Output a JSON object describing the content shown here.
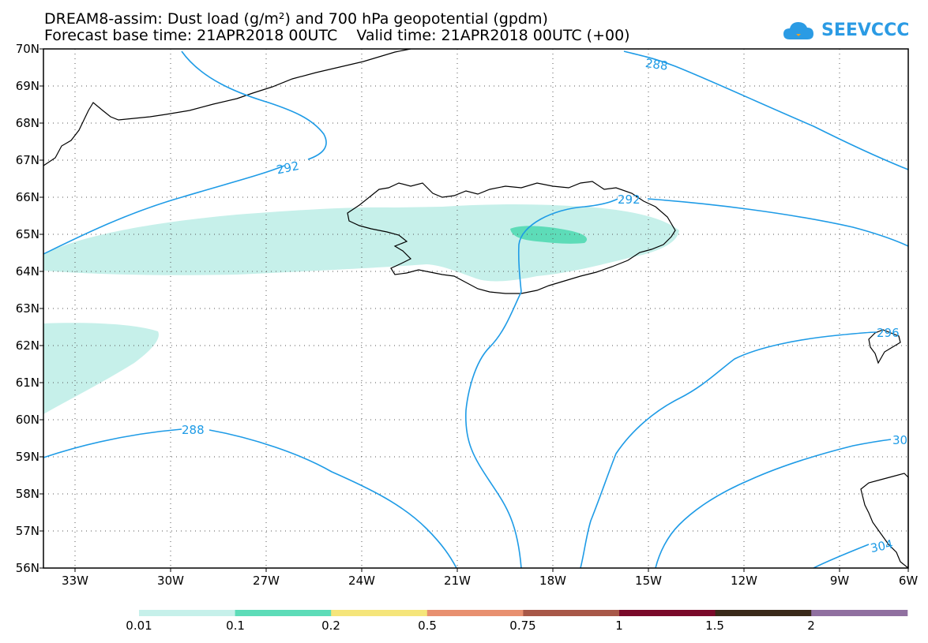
{
  "title_line1": "DREAM8-assim: Dust load (g/m²) and 700 hPa geopotential (gpdm)",
  "title_line2": "Forecast base time: 21APR2018 00UTC    Valid time: 21APR2018 00UTC (+00)",
  "logo_text": "SEEVCCC",
  "lat_labels": [
    "70N",
    "69N",
    "68N",
    "67N",
    "66N",
    "65N",
    "64N",
    "63N",
    "62N",
    "61N",
    "60N",
    "59N",
    "58N",
    "57N",
    "56N"
  ],
  "lon_labels": [
    "33W",
    "30W",
    "27W",
    "24W",
    "21W",
    "18W",
    "15W",
    "12W",
    "9W",
    "6W"
  ],
  "contour_labels": [
    "288",
    "292",
    "292",
    "288",
    "296",
    "30",
    "304"
  ],
  "colorbar": {
    "labels": [
      "0.01",
      "0.1",
      "0.2",
      "0.5",
      "0.75",
      "1",
      "1.5",
      "2"
    ],
    "colors": [
      "#c6f0ea",
      "#5ddcb8",
      "#f5e57a",
      "#e89070",
      "#a85848",
      "#7a0a2a",
      "#3a2a1a",
      "#9070a0"
    ]
  },
  "colors": {
    "contour": "#1e9be6",
    "dust_low": "#c6f0ea",
    "dust_mid": "#5ddcb8"
  }
}
